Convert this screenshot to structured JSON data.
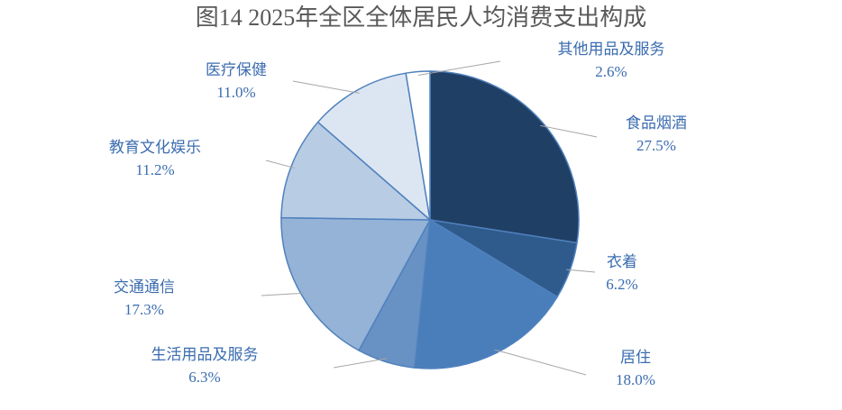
{
  "chart_data": {
    "type": "pie",
    "title": "图14 2025年全区全体居民人均消费支出构成",
    "categories": [
      "食品烟酒",
      "衣着",
      "居住",
      "生活用品及服务",
      "交通通信",
      "教育文化娱乐",
      "医疗保健",
      "其他用品及服务"
    ],
    "values": [
      27.5,
      6.2,
      18.0,
      6.3,
      17.3,
      11.2,
      11.0,
      2.6
    ],
    "value_labels": [
      "27.5%",
      "6.2%",
      "18.0%",
      "6.3%",
      "17.3%",
      "11.2%",
      "11.0%",
      "2.6%"
    ],
    "colors": [
      "#203f65",
      "#2f5a8c",
      "#4a7ebb",
      "#6891c4",
      "#95b3d7",
      "#b8cce4",
      "#dce6f2",
      "#ffffff"
    ]
  }
}
